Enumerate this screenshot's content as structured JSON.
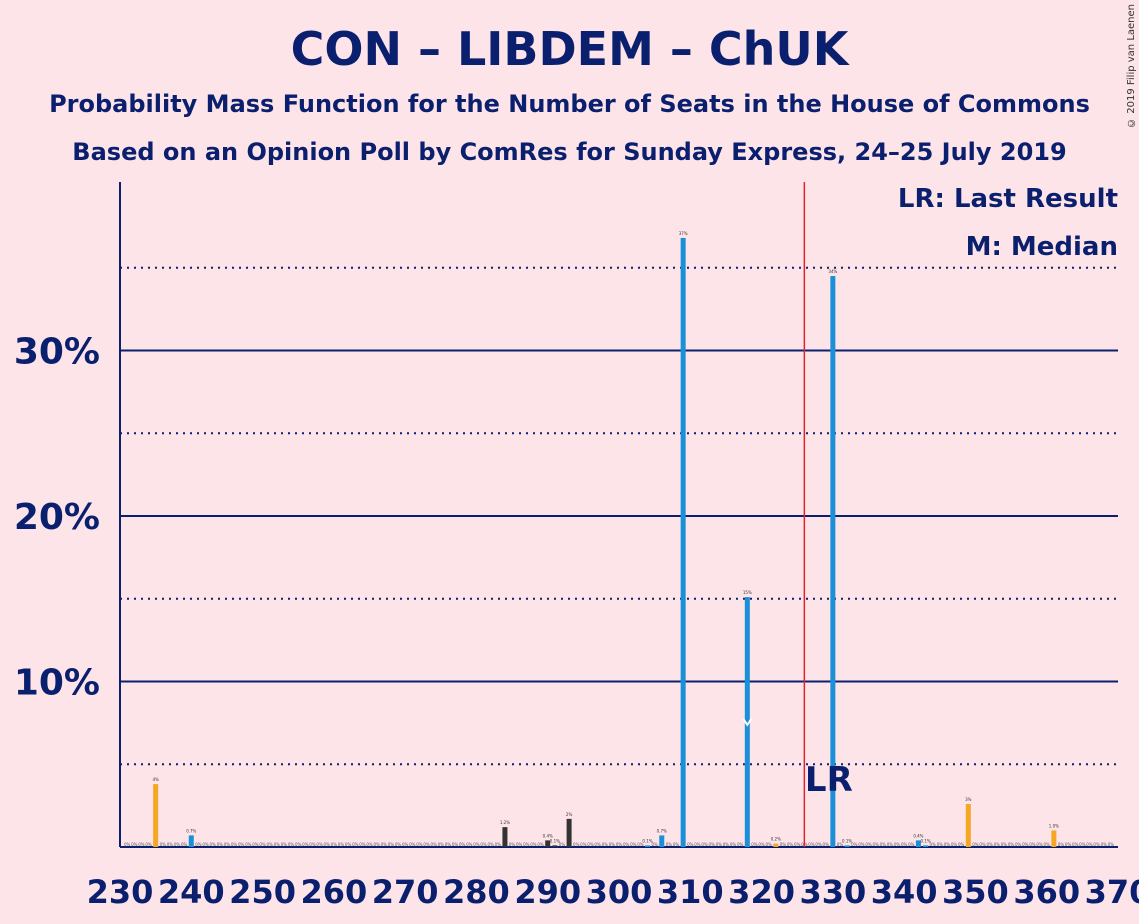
{
  "title": "CON – LIBDEM – ChUK",
  "subtitle": "Probability Mass Function for the Number of Seats in the House of Commons",
  "subtitle2": "Based on an Opinion Poll by ComRes for Sunday Express, 24–25 July 2019",
  "copyright": "© 2019 Filip van Laenen",
  "legend": {
    "last_result": "LR: Last Result",
    "median": "M: Median"
  },
  "colors": {
    "background": "#fde4e8",
    "axis": "#0a1f6e",
    "probability_bar": "#1a90d9",
    "last_result_bar": "#f5a623",
    "other_bar": "#333333",
    "median_line": "#e8202a"
  },
  "chart_data": {
    "type": "bar",
    "xlim": [
      230,
      370
    ],
    "ylim": [
      0,
      40
    ],
    "x_ticks": [
      230,
      240,
      250,
      260,
      270,
      280,
      290,
      300,
      310,
      320,
      330,
      340,
      350,
      360,
      370
    ],
    "y_ticks": [
      "10%",
      "20%",
      "30%"
    ],
    "y_tick_values": [
      10,
      20,
      30
    ],
    "grid": "solid at 10/20/30, dotted at 5/15/25/35",
    "median_line_x": 326,
    "last_result_x": 330,
    "last_result_label": "LR",
    "median_marker_x": 318,
    "bars": [
      {
        "x": 235,
        "value": 3.8,
        "label": "4%",
        "color": "orange"
      },
      {
        "x": 240,
        "value": 0.7,
        "label": "0.7%",
        "color": "blue"
      },
      {
        "x": 284,
        "value": 1.2,
        "label": "1.2%",
        "color": "dark"
      },
      {
        "x": 290,
        "value": 0.4,
        "label": "0.4%",
        "color": "dark"
      },
      {
        "x": 291,
        "value": 0.1,
        "label": "0.1%",
        "color": "dark"
      },
      {
        "x": 293,
        "value": 1.7,
        "label": "2%",
        "color": "dark"
      },
      {
        "x": 304,
        "value": 0.1,
        "label": "0.1%",
        "color": "blue"
      },
      {
        "x": 306,
        "value": 0.7,
        "label": "0.7%",
        "color": "blue"
      },
      {
        "x": 309,
        "value": 36.8,
        "label": "37%",
        "color": "blue"
      },
      {
        "x": 318,
        "value": 15.1,
        "label": "15%",
        "color": "blue"
      },
      {
        "x": 322,
        "value": 0.2,
        "label": "0.2%",
        "color": "orange"
      },
      {
        "x": 330,
        "value": 34.5,
        "label": "34%",
        "color": "blue"
      },
      {
        "x": 332,
        "value": 0.1,
        "label": "0.1%",
        "color": "blue"
      },
      {
        "x": 342,
        "value": 0.4,
        "label": "0.4%",
        "color": "blue"
      },
      {
        "x": 343,
        "value": 0.1,
        "label": "0.1%",
        "color": "blue"
      },
      {
        "x": 349,
        "value": 2.6,
        "label": "3%",
        "color": "orange"
      },
      {
        "x": 361,
        "value": 1.0,
        "label": "1.0%",
        "color": "orange"
      }
    ],
    "zero_label": "0%"
  }
}
